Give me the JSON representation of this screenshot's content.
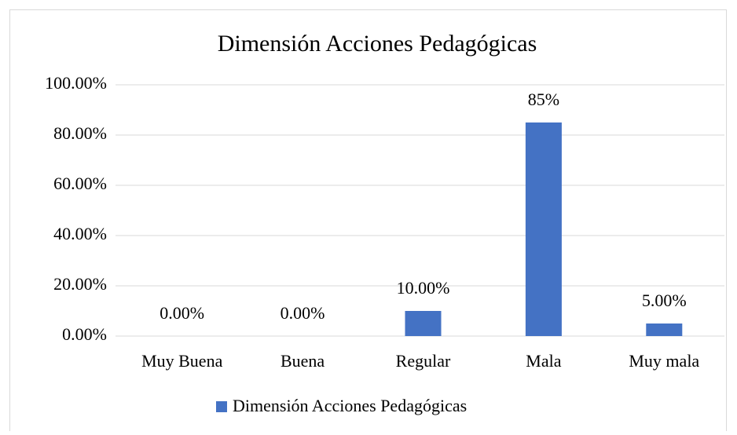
{
  "chart_data": {
    "type": "bar",
    "title": "Dimensión Acciones Pedagógicas",
    "categories": [
      "Muy Buena",
      "Buena",
      "Regular",
      "Mala",
      "Muy mala"
    ],
    "series": [
      {
        "name": "Dimensión Acciones Pedagógicas",
        "color": "#4472c4",
        "values": [
          0,
          0,
          10,
          85,
          5
        ],
        "value_labels": [
          "0.00%",
          "0.00%",
          "10.00%",
          "85%",
          "5.00%"
        ]
      }
    ],
    "ylim": [
      0,
      100
    ],
    "yticks": [
      {
        "value": 0,
        "label": "0.00%"
      },
      {
        "value": 20,
        "label": "20.00%"
      },
      {
        "value": 40,
        "label": "40.00%"
      },
      {
        "value": 60,
        "label": "60.00%"
      },
      {
        "value": 80,
        "label": "80.00%"
      },
      {
        "value": 100,
        "label": "100.00%"
      }
    ],
    "grid": true,
    "legend": "bottom"
  }
}
